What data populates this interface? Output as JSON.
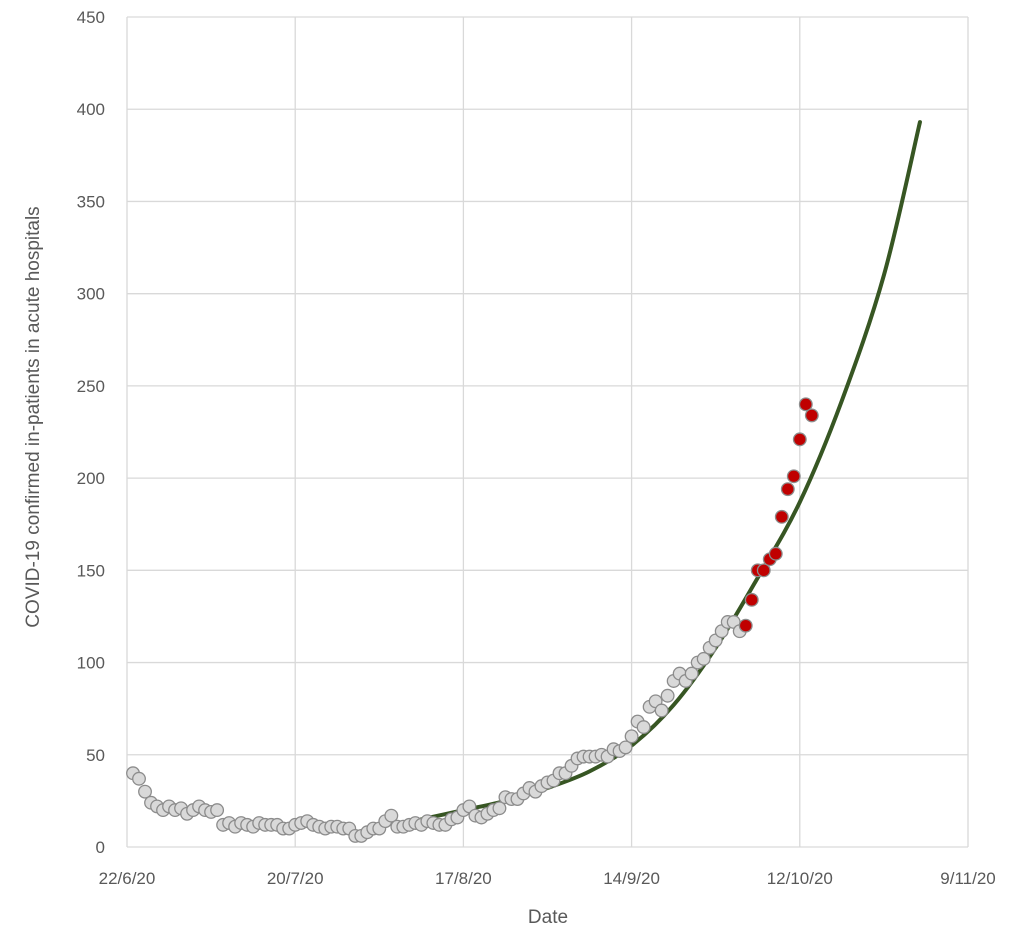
{
  "chart_data": {
    "type": "scatter",
    "xlabel": "Date",
    "ylabel": "COVID-19 confirmed in-patients in acute hospitals",
    "xlim": [
      "2020-06-22",
      "2020-11-09"
    ],
    "ylim": [
      0,
      450
    ],
    "grid": true,
    "x_ticks": [
      "22/6/20",
      "20/7/20",
      "17/8/20",
      "14/9/20",
      "12/10/20",
      "9/11/20"
    ],
    "y_ticks": [
      0,
      50,
      100,
      150,
      200,
      250,
      300,
      350,
      400,
      450
    ],
    "colors": {
      "observed": "#d9d9d9",
      "observed_edge": "#8c8c8c",
      "recent": "#c00000",
      "recent_edge": "#8c8c8c",
      "fit": "#375623",
      "grid": "#d9d9d9"
    },
    "series": [
      {
        "role": "observed",
        "points": [
          [
            "2020-06-23",
            40
          ],
          [
            "2020-06-24",
            37
          ],
          [
            "2020-06-25",
            30
          ],
          [
            "2020-06-26",
            24
          ],
          [
            "2020-06-27",
            22
          ],
          [
            "2020-06-28",
            20
          ],
          [
            "2020-06-29",
            22
          ],
          [
            "2020-06-30",
            20
          ],
          [
            "2020-07-01",
            21
          ],
          [
            "2020-07-02",
            18
          ],
          [
            "2020-07-03",
            20
          ],
          [
            "2020-07-04",
            22
          ],
          [
            "2020-07-05",
            20
          ],
          [
            "2020-07-06",
            19
          ],
          [
            "2020-07-07",
            20
          ],
          [
            "2020-07-08",
            12
          ],
          [
            "2020-07-09",
            13
          ],
          [
            "2020-07-10",
            11
          ],
          [
            "2020-07-11",
            13
          ],
          [
            "2020-07-12",
            12
          ],
          [
            "2020-07-13",
            11
          ],
          [
            "2020-07-14",
            13
          ],
          [
            "2020-07-15",
            12
          ],
          [
            "2020-07-16",
            12
          ],
          [
            "2020-07-17",
            12
          ],
          [
            "2020-07-18",
            10
          ],
          [
            "2020-07-19",
            10
          ],
          [
            "2020-07-20",
            12
          ],
          [
            "2020-07-21",
            13
          ],
          [
            "2020-07-22",
            14
          ],
          [
            "2020-07-23",
            12
          ],
          [
            "2020-07-24",
            11
          ],
          [
            "2020-07-25",
            10
          ],
          [
            "2020-07-26",
            11
          ],
          [
            "2020-07-27",
            11
          ],
          [
            "2020-07-28",
            10
          ],
          [
            "2020-07-29",
            10
          ],
          [
            "2020-07-30",
            6
          ],
          [
            "2020-07-31",
            6
          ],
          [
            "2020-08-01",
            8
          ],
          [
            "2020-08-02",
            10
          ],
          [
            "2020-08-03",
            10
          ],
          [
            "2020-08-04",
            14
          ],
          [
            "2020-08-05",
            17
          ],
          [
            "2020-08-06",
            11
          ],
          [
            "2020-08-07",
            11
          ],
          [
            "2020-08-08",
            12
          ],
          [
            "2020-08-09",
            13
          ],
          [
            "2020-08-10",
            12
          ],
          [
            "2020-08-11",
            14
          ],
          [
            "2020-08-12",
            13
          ],
          [
            "2020-08-13",
            12
          ],
          [
            "2020-08-14",
            12
          ],
          [
            "2020-08-15",
            15
          ],
          [
            "2020-08-16",
            16
          ],
          [
            "2020-08-17",
            20
          ],
          [
            "2020-08-18",
            22
          ],
          [
            "2020-08-19",
            17
          ],
          [
            "2020-08-20",
            16
          ],
          [
            "2020-08-21",
            18
          ],
          [
            "2020-08-22",
            20
          ],
          [
            "2020-08-23",
            21
          ],
          [
            "2020-08-24",
            27
          ],
          [
            "2020-08-25",
            26
          ],
          [
            "2020-08-26",
            26
          ],
          [
            "2020-08-27",
            29
          ],
          [
            "2020-08-28",
            32
          ],
          [
            "2020-08-29",
            30
          ],
          [
            "2020-08-30",
            33
          ],
          [
            "2020-08-31",
            35
          ],
          [
            "2020-09-01",
            36
          ],
          [
            "2020-09-02",
            40
          ],
          [
            "2020-09-03",
            40
          ],
          [
            "2020-09-04",
            44
          ],
          [
            "2020-09-05",
            48
          ],
          [
            "2020-09-06",
            49
          ],
          [
            "2020-09-07",
            49
          ],
          [
            "2020-09-08",
            49
          ],
          [
            "2020-09-09",
            50
          ],
          [
            "2020-09-10",
            49
          ],
          [
            "2020-09-11",
            53
          ],
          [
            "2020-09-12",
            52
          ],
          [
            "2020-09-13",
            54
          ],
          [
            "2020-09-14",
            60
          ],
          [
            "2020-09-15",
            68
          ],
          [
            "2020-09-16",
            65
          ],
          [
            "2020-09-17",
            76
          ],
          [
            "2020-09-18",
            79
          ],
          [
            "2020-09-19",
            74
          ],
          [
            "2020-09-20",
            82
          ],
          [
            "2020-09-21",
            90
          ],
          [
            "2020-09-22",
            94
          ],
          [
            "2020-09-23",
            90
          ],
          [
            "2020-09-24",
            94
          ],
          [
            "2020-09-25",
            100
          ],
          [
            "2020-09-26",
            102
          ],
          [
            "2020-09-27",
            108
          ],
          [
            "2020-09-28",
            112
          ],
          [
            "2020-09-29",
            117
          ],
          [
            "2020-09-30",
            122
          ],
          [
            "2020-10-01",
            122
          ],
          [
            "2020-10-02",
            117
          ]
        ]
      },
      {
        "role": "recent",
        "points": [
          [
            "2020-10-03",
            120
          ],
          [
            "2020-10-04",
            134
          ],
          [
            "2020-10-05",
            150
          ],
          [
            "2020-10-06",
            150
          ],
          [
            "2020-10-07",
            156
          ],
          [
            "2020-10-08",
            159
          ],
          [
            "2020-10-09",
            179
          ],
          [
            "2020-10-10",
            194
          ],
          [
            "2020-10-11",
            201
          ],
          [
            "2020-10-12",
            221
          ],
          [
            "2020-10-13",
            240
          ],
          [
            "2020-10-14",
            234
          ]
        ]
      },
      {
        "role": "fit",
        "points": [
          [
            "2020-08-10",
            15
          ],
          [
            "2020-08-17",
            20
          ],
          [
            "2020-08-24",
            25
          ],
          [
            "2020-08-31",
            32
          ],
          [
            "2020-09-07",
            41
          ],
          [
            "2020-09-14",
            55
          ],
          [
            "2020-09-21",
            77
          ],
          [
            "2020-09-28",
            108
          ],
          [
            "2020-10-05",
            146
          ],
          [
            "2020-10-12",
            187
          ],
          [
            "2020-10-19",
            242
          ],
          [
            "2020-10-26",
            310
          ],
          [
            "2020-11-01",
            393
          ]
        ]
      }
    ]
  }
}
